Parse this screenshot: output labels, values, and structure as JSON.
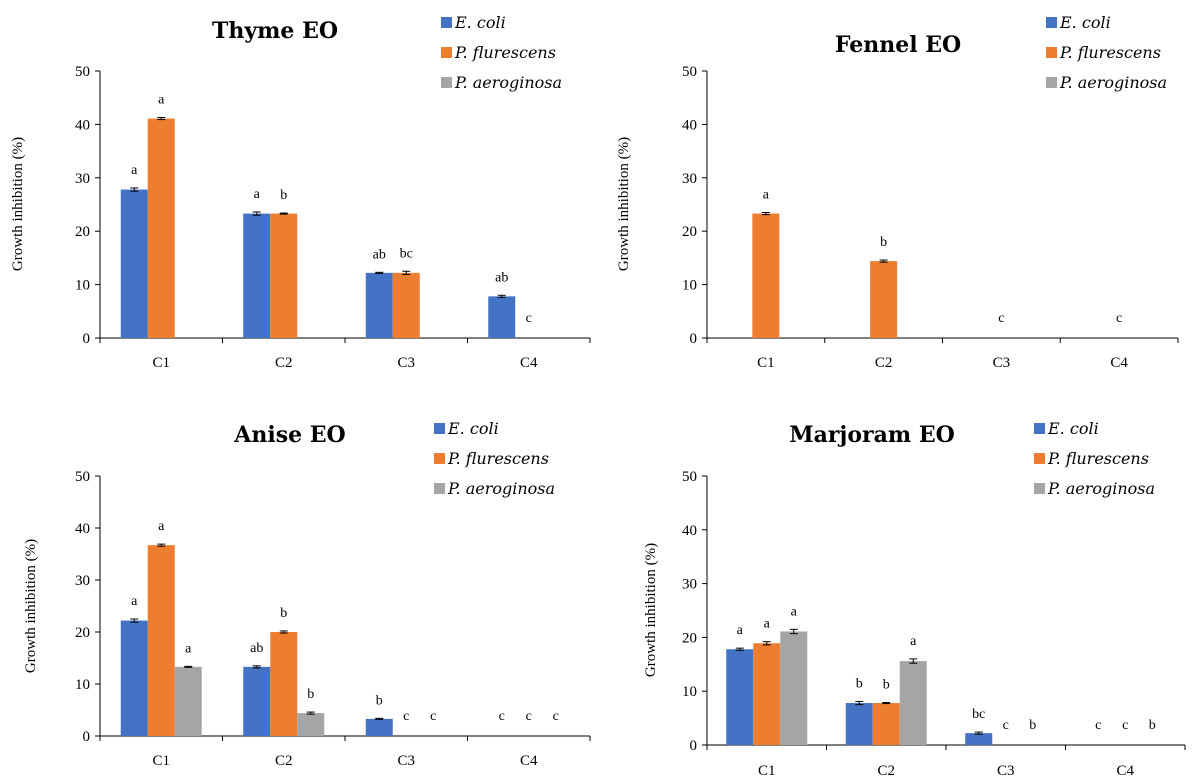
{
  "colors": {
    "E. coli": "#4472C4",
    "P. flurescens": "#ED7D31",
    "P. aeroginosa": "#A5A5A5"
  },
  "chart_data": [
    {
      "type": "bar",
      "title": "Thyme EO",
      "ylabel": "Growth inhibition (%)",
      "ylim": [
        0,
        50
      ],
      "yticks": [
        0,
        10,
        20,
        30,
        40,
        50
      ],
      "categories": [
        "C1",
        "C2",
        "C3",
        "C4"
      ],
      "legend_position": "top-right",
      "series": [
        {
          "name": "E. coli",
          "values": [
            27.8,
            23.3,
            12.2,
            7.8
          ],
          "errors": [
            0.3,
            0.3,
            0.1,
            0.2
          ],
          "letters": [
            "a",
            "a",
            "ab",
            "ab"
          ]
        },
        {
          "name": "P. flurescens",
          "values": [
            41.1,
            23.3,
            12.2,
            0
          ],
          "errors": [
            0.2,
            0.1,
            0.3,
            0
          ],
          "letters": [
            "a",
            "b",
            "bc",
            "c"
          ]
        },
        {
          "name": "P. aeroginosa",
          "values": [
            0,
            0,
            0,
            0
          ],
          "errors": [
            0,
            0,
            0,
            0
          ],
          "letters": [
            "",
            "",
            "",
            ""
          ]
        }
      ]
    },
    {
      "type": "bar",
      "title": "Fennel EO",
      "ylabel": "Growth inhibition (%)",
      "ylim": [
        0,
        50
      ],
      "yticks": [
        0,
        10,
        20,
        30,
        40,
        50
      ],
      "categories": [
        "C1",
        "C2",
        "C3",
        "C4"
      ],
      "legend_position": "top-right",
      "series": [
        {
          "name": "E. coli",
          "values": [
            0,
            0,
            0,
            0
          ],
          "errors": [
            0,
            0,
            0,
            0
          ],
          "letters": [
            "",
            "",
            "",
            ""
          ]
        },
        {
          "name": "P. flurescens",
          "values": [
            23.3,
            14.4,
            0,
            0
          ],
          "errors": [
            0.2,
            0.2,
            0,
            0
          ],
          "letters": [
            "a",
            "b",
            "c",
            "c"
          ]
        },
        {
          "name": "P. aeroginosa",
          "values": [
            0,
            0,
            0,
            0
          ],
          "errors": [
            0,
            0,
            0,
            0
          ],
          "letters": [
            "",
            "",
            "",
            ""
          ]
        }
      ]
    },
    {
      "type": "bar",
      "title": "Anise EO",
      "ylabel": "Growth inhibition (%)",
      "ylim": [
        0,
        50
      ],
      "yticks": [
        0,
        10,
        20,
        30,
        40,
        50
      ],
      "categories": [
        "C1",
        "C2",
        "C3",
        "C4"
      ],
      "legend_position": "top-right",
      "series": [
        {
          "name": "E. coli",
          "values": [
            22.2,
            13.3,
            3.3,
            0
          ],
          "errors": [
            0.3,
            0.2,
            0.1,
            0
          ],
          "letters": [
            "a",
            "ab",
            "b",
            "c"
          ]
        },
        {
          "name": "P. flurescens",
          "values": [
            36.7,
            20.0,
            0,
            0
          ],
          "errors": [
            0.2,
            0.2,
            0,
            0
          ],
          "letters": [
            "a",
            "b",
            "c",
            "c"
          ]
        },
        {
          "name": "P. aeroginosa",
          "values": [
            13.3,
            4.4,
            0,
            0
          ],
          "errors": [
            0.1,
            0.2,
            0,
            0
          ],
          "letters": [
            "a",
            "b",
            "c",
            "c"
          ]
        }
      ]
    },
    {
      "type": "bar",
      "title": "Marjoram EO",
      "ylabel": "Growth inhibition (%)",
      "ylim": [
        0,
        50
      ],
      "yticks": [
        0,
        10,
        20,
        30,
        40,
        50
      ],
      "categories": [
        "C1",
        "C2",
        "C3",
        "C4"
      ],
      "legend_position": "top-right",
      "series": [
        {
          "name": "E. coli",
          "values": [
            17.8,
            7.8,
            2.2,
            0
          ],
          "errors": [
            0.2,
            0.3,
            0.2,
            0
          ],
          "letters": [
            "a",
            "b",
            "bc",
            "c"
          ]
        },
        {
          "name": "P. flurescens",
          "values": [
            18.9,
            7.8,
            0,
            0
          ],
          "errors": [
            0.3,
            0.1,
            0,
            0
          ],
          "letters": [
            "a",
            "b",
            "c",
            "c"
          ]
        },
        {
          "name": "P. aeroginosa",
          "values": [
            21.1,
            15.6,
            0,
            0
          ],
          "errors": [
            0.4,
            0.4,
            0,
            0
          ],
          "letters": [
            "a",
            "a",
            "b",
            "b"
          ]
        }
      ]
    }
  ]
}
